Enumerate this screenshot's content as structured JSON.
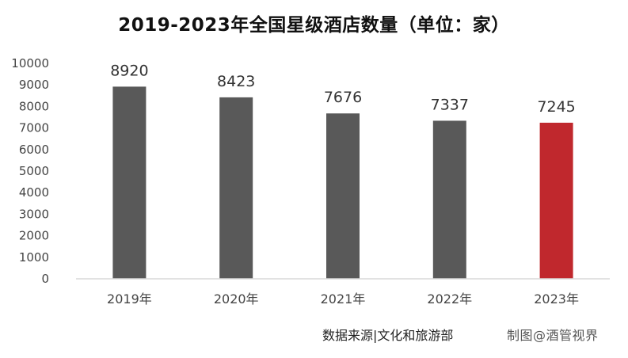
{
  "chart_data": {
    "type": "bar",
    "title": "2019-2023年全国星级酒店数量（单位：家）",
    "categories": [
      "2019年",
      "2020年",
      "2021年",
      "2022年",
      "2023年"
    ],
    "values": [
      8920,
      8423,
      7676,
      7337,
      7245
    ],
    "ylim": [
      0,
      10000
    ],
    "yticks": [
      0,
      1000,
      2000,
      3000,
      4000,
      5000,
      6000,
      7000,
      8000,
      9000,
      10000
    ],
    "xlabel": "",
    "ylabel": "",
    "grid": false,
    "legend": "none",
    "bar_colors": [
      "#595959",
      "#595959",
      "#595959",
      "#595959",
      "#c0282d"
    ],
    "axis_color": "#d9d9d9"
  },
  "footer": {
    "source": "数据来源|文化和旅游部",
    "watermark": "制图@酒管视界"
  }
}
